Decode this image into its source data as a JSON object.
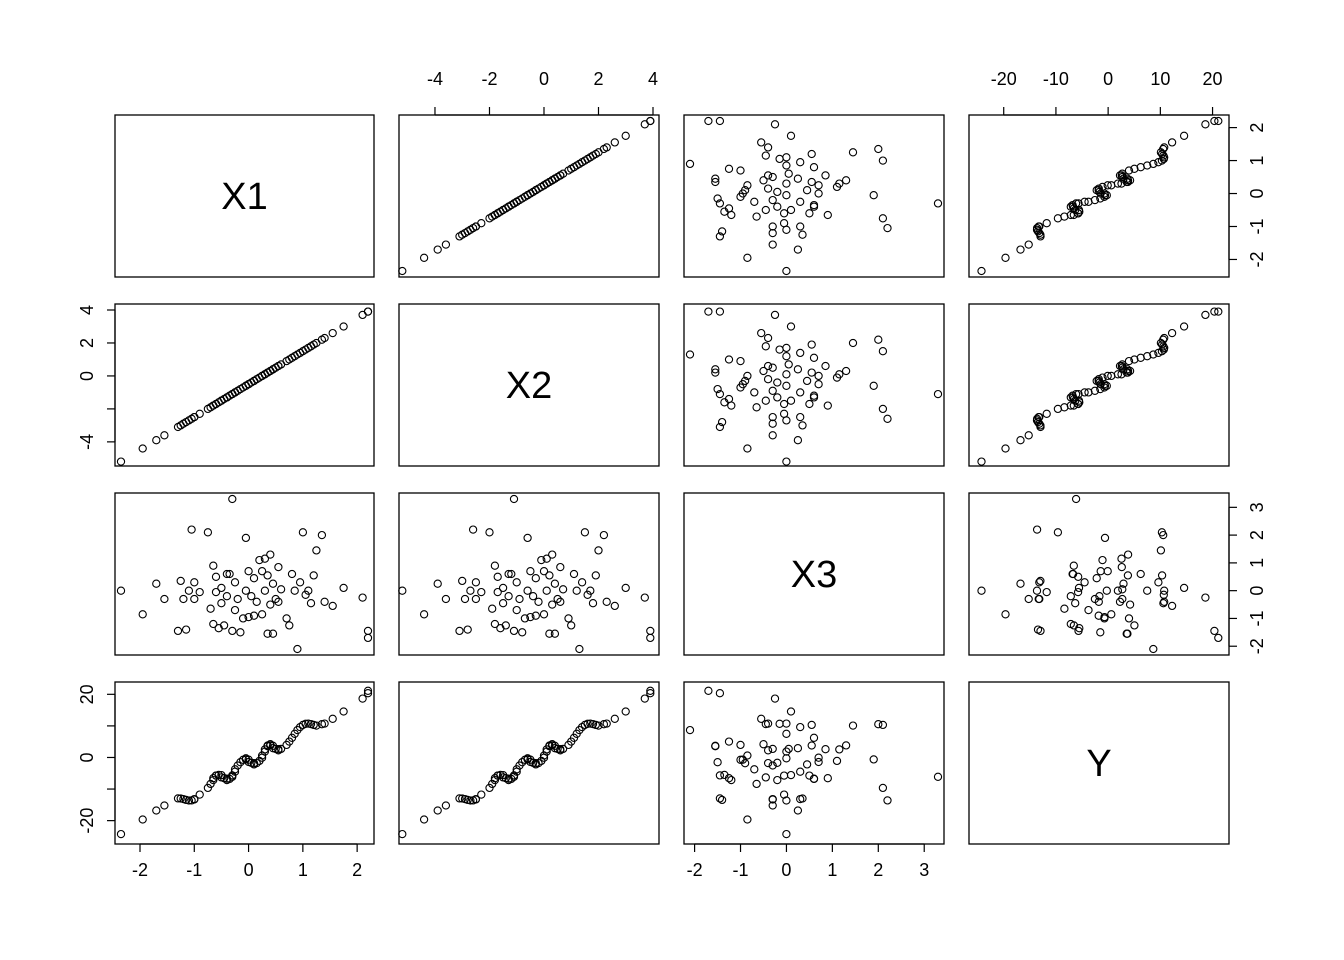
{
  "chart_data": {
    "type": "scatter",
    "kind": "scatterplot-matrix",
    "variables": [
      "X1",
      "X2",
      "X3",
      "Y"
    ],
    "axis_ticks": {
      "X1": [
        -2,
        -1,
        0,
        1,
        2
      ],
      "X2": [
        -4,
        -2,
        0,
        2,
        4
      ],
      "X3": [
        -2,
        -1,
        0,
        1,
        2,
        3
      ],
      "Y": [
        -20,
        -10,
        0,
        10,
        20
      ]
    },
    "axis_tick_labels": {
      "X1": [
        "-2",
        "-1",
        "0",
        "1",
        "2"
      ],
      "X2": [
        "-4",
        "-2",
        "0",
        "2",
        "4"
      ],
      "X3": [
        "-2",
        "-1",
        "0",
        "1",
        "2",
        "3"
      ],
      "Y": [
        "-20",
        "-10",
        "0",
        "10",
        "20"
      ]
    },
    "tick_placement": {
      "X1": {
        "x_axis": "bottom",
        "y_axis": "right",
        "y_ticks_shown": [
          -2,
          -1,
          0,
          1,
          2
        ]
      },
      "X2": {
        "x_axis": "top",
        "y_axis": "left",
        "y_ticks_shown": [
          -4,
          -2,
          0,
          2,
          4
        ],
        "y_labels_shown": [
          "-4",
          "0",
          "2",
          "4"
        ]
      },
      "X3": {
        "x_axis": "bottom",
        "y_axis": "right",
        "y_ticks_shown": [
          -2,
          -1,
          0,
          1,
          2,
          3
        ]
      },
      "Y": {
        "x_axis": "top",
        "y_axis": "left",
        "y_ticks_shown": [
          -20,
          -10,
          0,
          10,
          20
        ],
        "y_labels_shown": [
          "-20",
          "0",
          "20"
        ]
      }
    },
    "axis_ranges": {
      "X1": [
        -2.35,
        2.2
      ],
      "X2": [
        -5.1,
        4.0
      ],
      "X3": [
        -2.1,
        3.3
      ],
      "Y": [
        -25.5,
        22.0
      ]
    },
    "grid": false,
    "legend": "none",
    "point_marker": "open-circle",
    "point_color": "#000000",
    "observations": [
      {
        "X1": -2.35,
        "X3": 0.0
      },
      {
        "X1": -1.95,
        "X3": -0.85
      },
      {
        "X1": -1.7,
        "X3": 0.25
      },
      {
        "X1": -1.55,
        "X3": -0.3
      },
      {
        "X1": -1.3,
        "X3": -1.45
      },
      {
        "X1": -1.25,
        "X3": 0.35
      },
      {
        "X1": -1.2,
        "X3": -0.3
      },
      {
        "X1": -1.15,
        "X3": -1.4
      },
      {
        "X1": -1.1,
        "X3": 0.0
      },
      {
        "X1": -1.05,
        "X3": 2.2
      },
      {
        "X1": -1.0,
        "X3": -0.3
      },
      {
        "X1": -1.0,
        "X3": 0.3
      },
      {
        "X1": -0.9,
        "X3": -0.05
      },
      {
        "X1": -0.75,
        "X3": 2.1
      },
      {
        "X1": -0.7,
        "X3": -0.65
      },
      {
        "X1": -0.65,
        "X3": -1.2
      },
      {
        "X1": -0.65,
        "X3": 0.9
      },
      {
        "X1": -0.6,
        "X3": -0.05
      },
      {
        "X1": -0.6,
        "X3": 0.5
      },
      {
        "X1": -0.55,
        "X3": -1.35
      },
      {
        "X1": -0.5,
        "X3": 0.1
      },
      {
        "X1": -0.5,
        "X3": -0.45
      },
      {
        "X1": -0.45,
        "X3": -1.25
      },
      {
        "X1": -0.4,
        "X3": 0.6
      },
      {
        "X1": -0.4,
        "X3": -0.2
      },
      {
        "X1": -0.35,
        "X3": 0.6
      },
      {
        "X1": -0.3,
        "X3": 3.3
      },
      {
        "X1": -0.3,
        "X3": -1.45
      },
      {
        "X1": -0.25,
        "X3": 0.3
      },
      {
        "X1": -0.25,
        "X3": -0.7
      },
      {
        "X1": -0.2,
        "X3": -0.3
      },
      {
        "X1": -0.15,
        "X3": -1.5
      },
      {
        "X1": -0.1,
        "X3": -1.0
      },
      {
        "X1": -0.05,
        "X3": 0.0
      },
      {
        "X1": -0.05,
        "X3": 1.9
      },
      {
        "X1": 0.0,
        "X3": -0.95
      },
      {
        "X1": 0.0,
        "X3": 0.7
      },
      {
        "X1": 0.05,
        "X3": -0.2
      },
      {
        "X1": 0.1,
        "X3": -0.9
      },
      {
        "X1": 0.1,
        "X3": 0.45
      },
      {
        "X1": 0.15,
        "X3": -0.4
      },
      {
        "X1": 0.2,
        "X3": 1.1
      },
      {
        "X1": 0.25,
        "X3": 0.7
      },
      {
        "X1": 0.25,
        "X3": -0.85
      },
      {
        "X1": 0.3,
        "X3": 0.0
      },
      {
        "X1": 0.3,
        "X3": 1.15
      },
      {
        "X1": 0.35,
        "X3": -1.55
      },
      {
        "X1": 0.35,
        "X3": 0.55
      },
      {
        "X1": 0.4,
        "X3": -0.5
      },
      {
        "X1": 0.4,
        "X3": 1.3
      },
      {
        "X1": 0.45,
        "X3": -1.55
      },
      {
        "X1": 0.45,
        "X3": 0.25
      },
      {
        "X1": 0.5,
        "X3": -0.3
      },
      {
        "X1": 0.55,
        "X3": 0.85
      },
      {
        "X1": 0.55,
        "X3": -0.4
      },
      {
        "X1": 0.6,
        "X3": 0.05
      },
      {
        "X1": 0.7,
        "X3": -1.0
      },
      {
        "X1": 0.75,
        "X3": -1.25
      },
      {
        "X1": 0.8,
        "X3": 0.6
      },
      {
        "X1": 0.85,
        "X3": 0.0
      },
      {
        "X1": 0.9,
        "X3": -2.1
      },
      {
        "X1": 0.95,
        "X3": 0.3
      },
      {
        "X1": 1.0,
        "X3": 2.1
      },
      {
        "X1": 1.05,
        "X3": -0.15
      },
      {
        "X1": 1.1,
        "X3": 0.0
      },
      {
        "X1": 1.15,
        "X3": -0.45
      },
      {
        "X1": 1.2,
        "X3": 0.55
      },
      {
        "X1": 1.25,
        "X3": 1.45
      },
      {
        "X1": 1.35,
        "X3": 2.0
      },
      {
        "X1": 1.4,
        "X3": -0.4
      },
      {
        "X1": 1.55,
        "X3": -0.55
      },
      {
        "X1": 1.75,
        "X3": 0.1
      },
      {
        "X1": 2.1,
        "X3": -0.25
      },
      {
        "X1": 2.2,
        "X3": -1.45
      },
      {
        "X1": 2.2,
        "X3": -1.7
      }
    ]
  }
}
